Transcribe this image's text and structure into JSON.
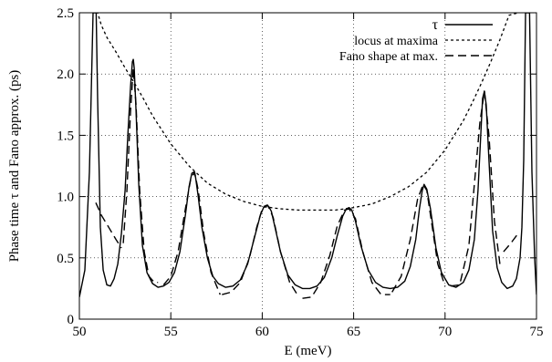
{
  "chart_data": {
    "type": "line",
    "title": "",
    "xlabel": "E  (meV)",
    "ylabel": "Phase time τ and Fano approx. (ps)",
    "xlim": [
      50,
      75
    ],
    "ylim": [
      0,
      2.5
    ],
    "xticks": [
      50,
      55,
      60,
      65,
      70,
      75
    ],
    "yticks": [
      0,
      0.5,
      1.0,
      1.5,
      2.0,
      2.5
    ],
    "xtick_labels": [
      "50",
      "55",
      "60",
      "65",
      "70",
      "75"
    ],
    "ytick_labels": [
      "0",
      "0.5",
      "1.0",
      "1.5",
      "2.0",
      "2.5"
    ],
    "grid": true,
    "legend_position": "top-right",
    "series": [
      {
        "name": "τ",
        "style": "solid",
        "color": "#000000",
        "x": [
          50.0,
          50.3,
          50.55,
          50.75,
          50.85,
          50.92,
          51.0,
          51.15,
          51.3,
          51.5,
          51.7,
          51.9,
          52.1,
          52.3,
          52.5,
          52.65,
          52.8,
          52.9,
          52.95,
          53.0,
          53.1,
          53.25,
          53.45,
          53.7,
          54.0,
          54.3,
          54.6,
          54.9,
          55.2,
          55.5,
          55.8,
          56.0,
          56.15,
          56.25,
          56.35,
          56.5,
          56.7,
          57.0,
          57.3,
          57.6,
          58.0,
          58.4,
          58.8,
          59.2,
          59.6,
          59.9,
          60.1,
          60.25,
          60.35,
          60.5,
          60.7,
          61.0,
          61.4,
          61.8,
          62.2,
          62.6,
          63.0,
          63.4,
          63.8,
          64.1,
          64.4,
          64.6,
          64.75,
          64.9,
          65.1,
          65.4,
          65.8,
          66.2,
          66.6,
          67.0,
          67.4,
          67.8,
          68.1,
          68.4,
          68.6,
          68.75,
          68.85,
          69.0,
          69.2,
          69.5,
          69.8,
          70.2,
          70.6,
          71.0,
          71.3,
          71.6,
          71.8,
          71.95,
          72.05,
          72.15,
          72.25,
          72.4,
          72.6,
          72.85,
          73.1,
          73.4,
          73.7,
          73.9,
          74.1,
          74.2,
          74.3,
          74.4,
          74.5,
          74.62,
          74.75,
          74.9,
          75.0
        ],
        "y": [
          0.18,
          0.4,
          1.2,
          2.5,
          2.5,
          2.5,
          1.8,
          0.75,
          0.4,
          0.28,
          0.27,
          0.33,
          0.45,
          0.7,
          1.05,
          1.5,
          1.9,
          2.1,
          2.12,
          2.05,
          1.7,
          1.1,
          0.6,
          0.38,
          0.29,
          0.26,
          0.27,
          0.3,
          0.38,
          0.55,
          0.85,
          1.08,
          1.19,
          1.2,
          1.16,
          1.0,
          0.75,
          0.5,
          0.35,
          0.29,
          0.26,
          0.27,
          0.32,
          0.45,
          0.68,
          0.85,
          0.92,
          0.93,
          0.92,
          0.88,
          0.75,
          0.55,
          0.36,
          0.28,
          0.25,
          0.25,
          0.27,
          0.34,
          0.5,
          0.68,
          0.84,
          0.9,
          0.91,
          0.89,
          0.8,
          0.6,
          0.4,
          0.3,
          0.26,
          0.25,
          0.26,
          0.31,
          0.43,
          0.65,
          0.9,
          1.05,
          1.1,
          1.06,
          0.9,
          0.58,
          0.38,
          0.28,
          0.26,
          0.3,
          0.4,
          0.65,
          1.05,
          1.5,
          1.8,
          1.86,
          1.75,
          1.3,
          0.72,
          0.42,
          0.3,
          0.25,
          0.27,
          0.33,
          0.5,
          0.75,
          1.3,
          2.5,
          2.5,
          2.5,
          1.2,
          0.5,
          0.2
        ]
      },
      {
        "name": "locus at maxima",
        "style": "dotted-short",
        "color": "#000000",
        "x": [
          50.9,
          51.0,
          51.2,
          51.5,
          52.0,
          52.5,
          53.0,
          53.5,
          54.0,
          55.0,
          56.0,
          57.0,
          58.0,
          59.0,
          60.0,
          61.0,
          62.0,
          63.0,
          64.0,
          65.0,
          66.0,
          67.0,
          68.0,
          69.0,
          70.0,
          71.0,
          71.5,
          72.0,
          72.5,
          73.0,
          73.5,
          74.0
        ],
        "y": [
          2.5,
          2.5,
          2.4,
          2.3,
          2.18,
          2.05,
          1.93,
          1.8,
          1.66,
          1.43,
          1.25,
          1.11,
          1.02,
          0.96,
          0.92,
          0.9,
          0.89,
          0.89,
          0.89,
          0.91,
          0.94,
          1.0,
          1.08,
          1.2,
          1.38,
          1.62,
          1.77,
          1.93,
          2.1,
          2.28,
          2.48,
          2.5
        ]
      },
      {
        "name": "Fano shape at max.",
        "style": "dashed-long",
        "color": "#000000",
        "segments": [
          {
            "x": [
              50.9,
              51.2,
              51.6,
              52.0,
              52.3
            ],
            "y": [
              0.95,
              0.85,
              0.75,
              0.65,
              0.58
            ]
          },
          {
            "x": [
              52.4,
              52.6,
              52.8,
              52.95,
              53.1,
              53.3,
              53.55,
              53.8,
              54.1,
              54.3
            ],
            "y": [
              0.62,
              1.05,
              1.7,
              2.05,
              1.75,
              1.05,
              0.55,
              0.35,
              0.3,
              0.3
            ]
          },
          {
            "x": [
              54.6,
              55.0,
              55.4,
              55.8,
              56.1,
              56.3,
              56.5,
              56.8,
              57.2,
              57.7
            ],
            "y": [
              0.28,
              0.35,
              0.55,
              0.9,
              1.15,
              1.2,
              1.05,
              0.7,
              0.38,
              0.2
            ]
          },
          {
            "x": [
              57.8,
              58.3,
              58.8,
              59.3,
              59.7,
              60.0,
              60.3,
              60.6,
              61.0,
              61.5,
              62.0
            ],
            "y": [
              0.2,
              0.22,
              0.3,
              0.5,
              0.75,
              0.9,
              0.93,
              0.83,
              0.55,
              0.3,
              0.18
            ]
          },
          {
            "x": [
              62.2,
              62.7,
              63.2,
              63.7,
              64.1,
              64.5,
              64.75,
              65.1,
              65.5,
              66.0,
              66.5,
              67.0
            ],
            "y": [
              0.17,
              0.18,
              0.3,
              0.52,
              0.76,
              0.89,
              0.9,
              0.82,
              0.55,
              0.3,
              0.2,
              0.2
            ]
          },
          {
            "x": [
              67.1,
              67.6,
              68.1,
              68.5,
              68.8,
              69.0,
              69.3,
              69.6,
              70.0
            ],
            "y": [
              0.22,
              0.35,
              0.65,
              0.98,
              1.1,
              1.05,
              0.75,
              0.45,
              0.27
            ]
          },
          {
            "x": [
              70.3,
              70.8,
              71.3,
              71.6,
              71.9,
              72.15,
              72.4,
              72.7,
              73.0
            ],
            "y": [
              0.27,
              0.28,
              0.6,
              1.1,
              1.6,
              1.86,
              1.5,
              0.8,
              0.45
            ]
          },
          {
            "x": [
              73.2,
              73.6,
              74.0
            ],
            "y": [
              0.55,
              0.62,
              0.7
            ]
          }
        ]
      }
    ]
  }
}
